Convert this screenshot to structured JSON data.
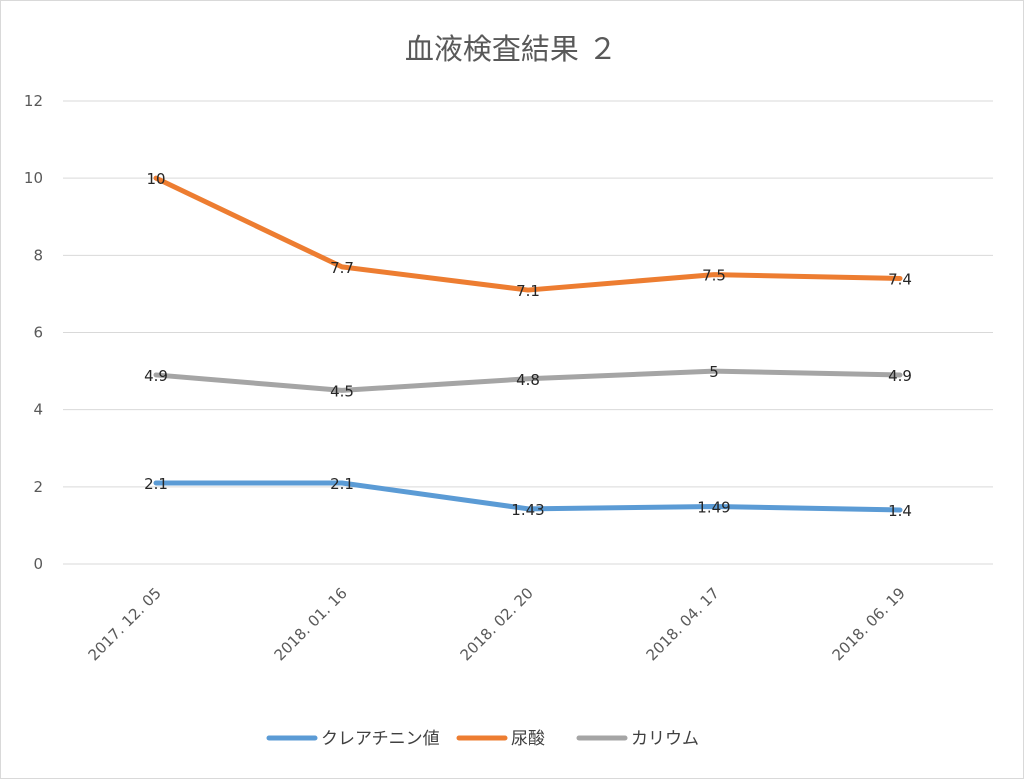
{
  "chart_data": {
    "type": "line",
    "title": "血液検査結果 ２",
    "categories": [
      "2017. 12. 05",
      "2018. 01. 16",
      "2018. 02. 20",
      "2018. 04. 17",
      "2018. 06. 19"
    ],
    "ylim": [
      0,
      12
    ],
    "yticks": [
      0,
      2,
      4,
      6,
      8,
      10,
      12
    ],
    "grid": true,
    "legend": "bottom",
    "series": [
      {
        "name": "クレアチニン値",
        "color": "#5b9bd5",
        "values": [
          2.1,
          2.1,
          1.43,
          1.49,
          1.4
        ]
      },
      {
        "name": "尿酸",
        "color": "#ed7d31",
        "values": [
          10,
          7.7,
          7.1,
          7.5,
          7.4
        ]
      },
      {
        "name": "カリウム",
        "color": "#a5a5a5",
        "values": [
          4.9,
          4.5,
          4.8,
          5,
          4.9
        ]
      }
    ]
  }
}
